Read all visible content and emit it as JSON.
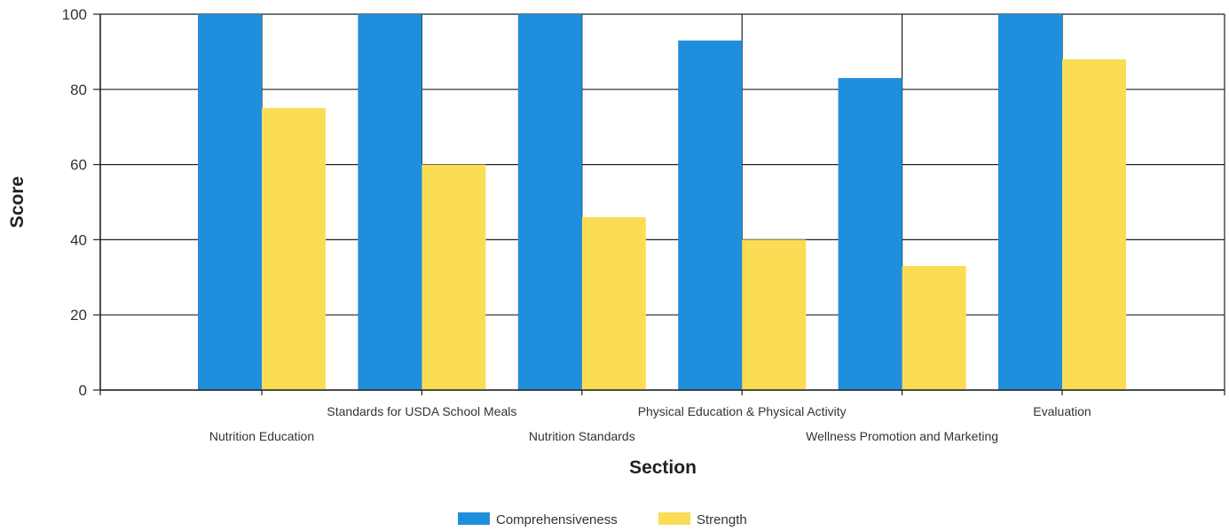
{
  "chart_data": {
    "type": "bar",
    "categories": [
      "Nutrition Education",
      "Standards for USDA School Meals",
      "Nutrition Standards",
      "Physical Education & Physical Activity",
      "Wellness Promotion and Marketing",
      "Evaluation"
    ],
    "series": [
      {
        "name": "Comprehensiveness",
        "color": "#1F8FDD",
        "values": [
          100,
          100,
          100,
          93,
          83,
          100
        ]
      },
      {
        "name": "Strength",
        "color": "#FBDC55",
        "values": [
          75,
          60,
          46,
          40,
          33,
          88
        ]
      }
    ],
    "xlabel": "Section",
    "ylabel": "Score",
    "ylim": [
      0,
      100
    ],
    "yticks": [
      0,
      20,
      40,
      60,
      80,
      100
    ],
    "grid": true,
    "legend_position": "bottom"
  }
}
